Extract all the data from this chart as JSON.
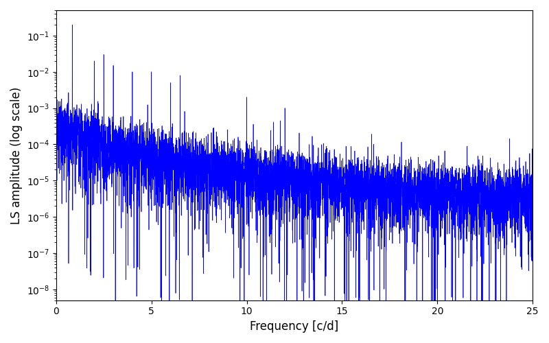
{
  "xlabel": "Frequency [c/d]",
  "ylabel": "LS amplitude (log scale)",
  "xlim": [
    0,
    25
  ],
  "ylim": [
    5e-09,
    0.5
  ],
  "line_color": "#0000ff",
  "line_width": 0.5,
  "background_color": "#ffffff",
  "figsize": [
    8.0,
    5.0
  ],
  "dpi": 100,
  "seed": 42,
  "n_points": 6000,
  "freq_max": 25.0
}
